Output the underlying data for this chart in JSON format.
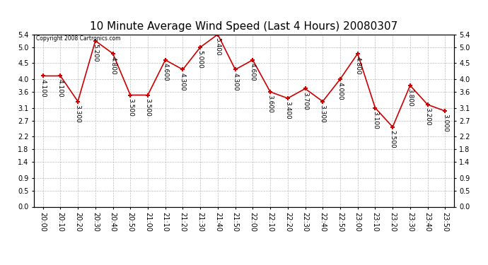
{
  "title": "10 Minute Average Wind Speed (Last 4 Hours) 20080307",
  "copyright": "Copyright 2008 Cartronics.com",
  "x_labels": [
    "20:00",
    "20:10",
    "20:20",
    "20:30",
    "20:40",
    "20:50",
    "21:00",
    "21:10",
    "21:20",
    "21:30",
    "21:40",
    "21:50",
    "22:00",
    "22:10",
    "22:20",
    "22:30",
    "22:40",
    "22:50",
    "23:00",
    "23:10",
    "23:20",
    "23:30",
    "23:40",
    "23:50"
  ],
  "y_values": [
    4.1,
    4.1,
    3.3,
    5.2,
    4.8,
    3.5,
    3.5,
    4.6,
    4.3,
    5.0,
    5.4,
    4.3,
    4.6,
    3.6,
    3.4,
    3.7,
    3.3,
    4.0,
    4.8,
    3.1,
    2.5,
    3.8,
    3.2,
    3.0
  ],
  "ylim": [
    0.0,
    5.4
  ],
  "yticks": [
    0.0,
    0.5,
    0.9,
    1.4,
    1.8,
    2.2,
    2.7,
    3.1,
    3.6,
    4.0,
    4.5,
    5.0,
    5.4
  ],
  "line_color": "#cc0000",
  "marker_color": "#cc0000",
  "bg_color": "#ffffff",
  "grid_color": "#bbbbbb",
  "title_fontsize": 11,
  "label_fontsize": 7,
  "annotation_fontsize": 6.5
}
